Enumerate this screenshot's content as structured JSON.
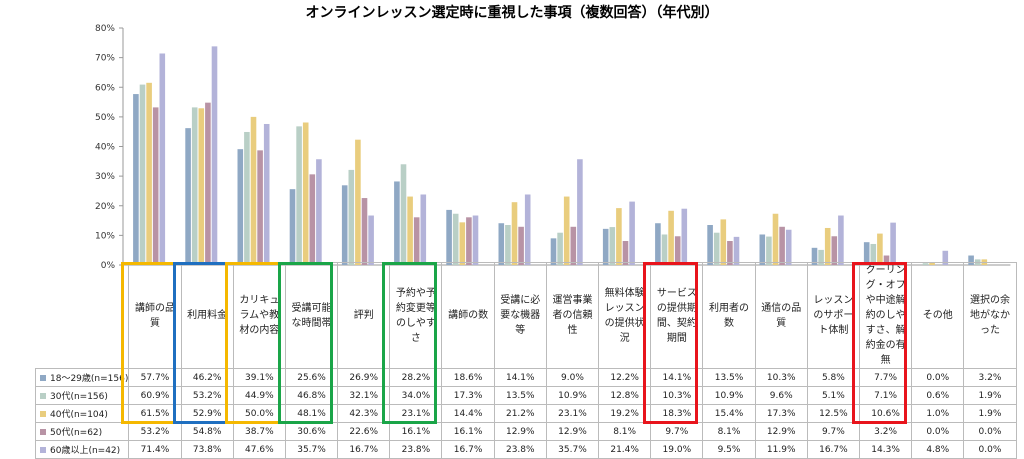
{
  "chart_data": {
    "type": "bar",
    "title": "オンラインレッスン選定時に重視した事項（複数回答）（年代別）",
    "ylim": [
      0,
      80
    ],
    "yticks": [
      "0%",
      "10%",
      "20%",
      "30%",
      "40%",
      "50%",
      "60%",
      "70%",
      "80%"
    ],
    "grid": false,
    "legend": "table-left",
    "categories": [
      "講師の品質",
      "利用料金",
      "カリキュラムや教材の内容",
      "受講可能な時間帯",
      "評判",
      "予約や予約変更等のしやすさ",
      "講師の数",
      "受講に必要な機器等",
      "運営事業者の信頼性",
      "無料体験レッスンの提供状況",
      "サービスの提供期間、契約期間",
      "利用者の数",
      "通信の品質",
      "レッスンのサポート体制",
      "クーリング・オフや中途解約のしやすさ、解約金の有無",
      "その他",
      "選択の余地がなかった"
    ],
    "series": [
      {
        "name": "18〜29歳(n=156)",
        "color": "#8fa8c4",
        "values": [
          57.7,
          46.2,
          39.1,
          25.6,
          26.9,
          28.2,
          18.6,
          14.1,
          9.0,
          12.2,
          14.1,
          13.5,
          10.3,
          5.8,
          7.7,
          0.0,
          3.2
        ]
      },
      {
        "name": "30代(n=156)",
        "color": "#b9cfc6",
        "values": [
          60.9,
          53.2,
          44.9,
          46.8,
          32.1,
          34.0,
          17.3,
          13.5,
          10.9,
          12.8,
          10.3,
          10.9,
          9.6,
          5.1,
          7.1,
          0.6,
          1.9
        ]
      },
      {
        "name": "40代(n=104)",
        "color": "#e9cd7e",
        "values": [
          61.5,
          52.9,
          50.0,
          48.1,
          42.3,
          23.1,
          14.4,
          21.2,
          23.1,
          19.2,
          18.3,
          15.4,
          17.3,
          12.5,
          10.6,
          1.0,
          1.9
        ]
      },
      {
        "name": "50代(n=62)",
        "color": "#b893a5",
        "values": [
          53.2,
          54.8,
          38.7,
          30.6,
          22.6,
          16.1,
          16.1,
          12.9,
          12.9,
          8.1,
          9.7,
          8.1,
          12.9,
          9.7,
          3.2,
          0.0,
          0.0
        ]
      },
      {
        "name": "60歳以上(n=42)",
        "color": "#b3b3d9",
        "values": [
          71.4,
          73.8,
          47.6,
          35.7,
          16.7,
          23.8,
          16.7,
          23.8,
          35.7,
          21.4,
          19.0,
          9.5,
          11.9,
          16.7,
          14.3,
          4.8,
          0.0
        ]
      }
    ],
    "highlights": [
      {
        "column": 0,
        "color": "#f5b800"
      },
      {
        "column": 1,
        "color": "#1f6fc0"
      },
      {
        "column": 2,
        "color": "#f5b800"
      },
      {
        "column": 3,
        "color": "#1aa548"
      },
      {
        "column": 5,
        "color": "#1aa548"
      },
      {
        "column": 10,
        "color": "#e8141c"
      },
      {
        "column": 14,
        "color": "#e8141c"
      }
    ]
  }
}
